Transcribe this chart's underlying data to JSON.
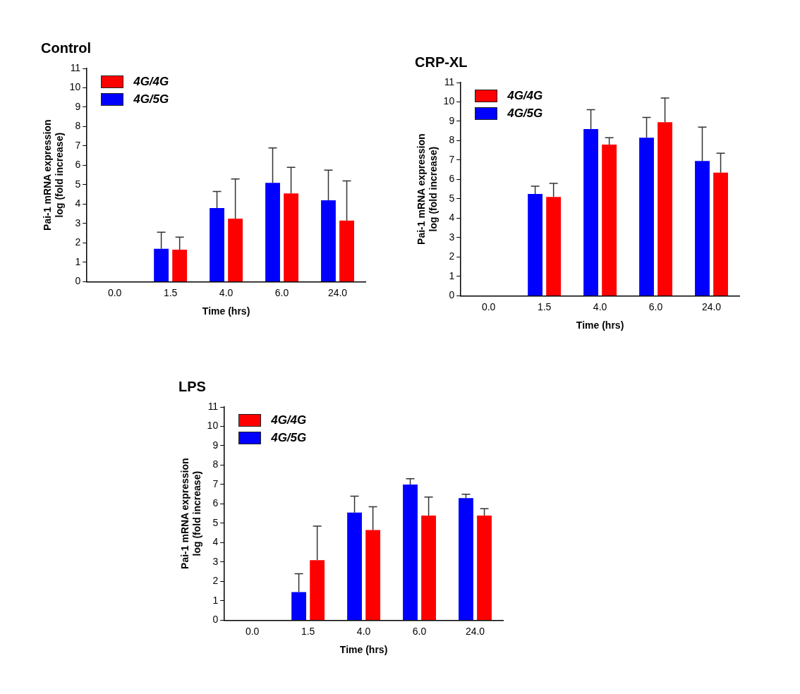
{
  "chart_data": [
    {
      "type": "bar",
      "title": "Control",
      "xlabel": "Time (hrs)",
      "ylabel": "Pai-1 mRNA expression\nlog (fold increase)",
      "categories": [
        "0.0",
        "1.5",
        "4.0",
        "6.0",
        "24.0"
      ],
      "ylim": [
        0,
        11
      ],
      "yticks": [
        0,
        1,
        2,
        3,
        4,
        5,
        6,
        7,
        8,
        9,
        10,
        11
      ],
      "grid": false,
      "legend": "top left",
      "series": [
        {
          "name": "4G/5G",
          "color": "#0000ff",
          "values": [
            0,
            1.7,
            3.8,
            5.1,
            4.2
          ],
          "errors": [
            null,
            [
              1.7,
              2.55
            ],
            [
              3.8,
              4.65
            ],
            [
              5.1,
              6.9
            ],
            [
              4.2,
              5.75
            ]
          ]
        },
        {
          "name": "4G/4G",
          "color": "#ff0000",
          "values": [
            0,
            1.65,
            3.25,
            4.55,
            3.15
          ],
          "errors": [
            null,
            [
              1.65,
              2.3
            ],
            [
              3.25,
              5.3
            ],
            [
              4.55,
              5.9
            ],
            [
              3.15,
              5.2
            ]
          ]
        }
      ]
    },
    {
      "type": "bar",
      "title": "CRP-XL",
      "xlabel": "Time (hrs)",
      "ylabel": "Pai-1 mRNA expression\nlog (fold increase)",
      "categories": [
        "0.0",
        "1.5",
        "4.0",
        "6.0",
        "24.0"
      ],
      "ylim": [
        0,
        11
      ],
      "yticks": [
        0,
        1,
        2,
        3,
        4,
        5,
        6,
        7,
        8,
        9,
        10,
        11
      ],
      "grid": false,
      "legend": "top left",
      "series": [
        {
          "name": "4G/5G",
          "color": "#0000ff",
          "values": [
            0,
            5.25,
            8.6,
            8.15,
            6.95
          ],
          "errors": [
            null,
            [
              5.25,
              5.65
            ],
            [
              8.6,
              9.6
            ],
            [
              8.15,
              9.2
            ],
            [
              6.95,
              8.7
            ]
          ]
        },
        {
          "name": "4G/4G",
          "color": "#ff0000",
          "values": [
            0,
            5.1,
            7.8,
            8.95,
            6.35
          ],
          "errors": [
            null,
            [
              5.1,
              5.8
            ],
            [
              7.8,
              8.15
            ],
            [
              8.95,
              10.2
            ],
            [
              6.35,
              7.35
            ]
          ]
        }
      ]
    },
    {
      "type": "bar",
      "title": "LPS",
      "xlabel": "Time (hrs)",
      "ylabel": "Pai-1 mRNA expression\nlog (fold increase)",
      "categories": [
        "0.0",
        "1.5",
        "4.0",
        "6.0",
        "24.0"
      ],
      "ylim": [
        0,
        11
      ],
      "yticks": [
        0,
        1,
        2,
        3,
        4,
        5,
        6,
        7,
        8,
        9,
        10,
        11
      ],
      "grid": false,
      "legend": "top left",
      "series": [
        {
          "name": "4G/5G",
          "color": "#0000ff",
          "values": [
            0,
            1.45,
            5.55,
            7.0,
            6.3
          ],
          "errors": [
            null,
            [
              1.45,
              2.4
            ],
            [
              5.55,
              6.4
            ],
            [
              7.0,
              7.3
            ],
            [
              6.3,
              6.5
            ]
          ]
        },
        {
          "name": "4G/4G",
          "color": "#ff0000",
          "values": [
            0,
            3.1,
            4.65,
            5.4,
            5.4
          ],
          "errors": [
            null,
            [
              3.1,
              4.85
            ],
            [
              4.65,
              5.85
            ],
            [
              5.4,
              6.35
            ],
            [
              5.4,
              5.75
            ]
          ]
        }
      ]
    }
  ]
}
